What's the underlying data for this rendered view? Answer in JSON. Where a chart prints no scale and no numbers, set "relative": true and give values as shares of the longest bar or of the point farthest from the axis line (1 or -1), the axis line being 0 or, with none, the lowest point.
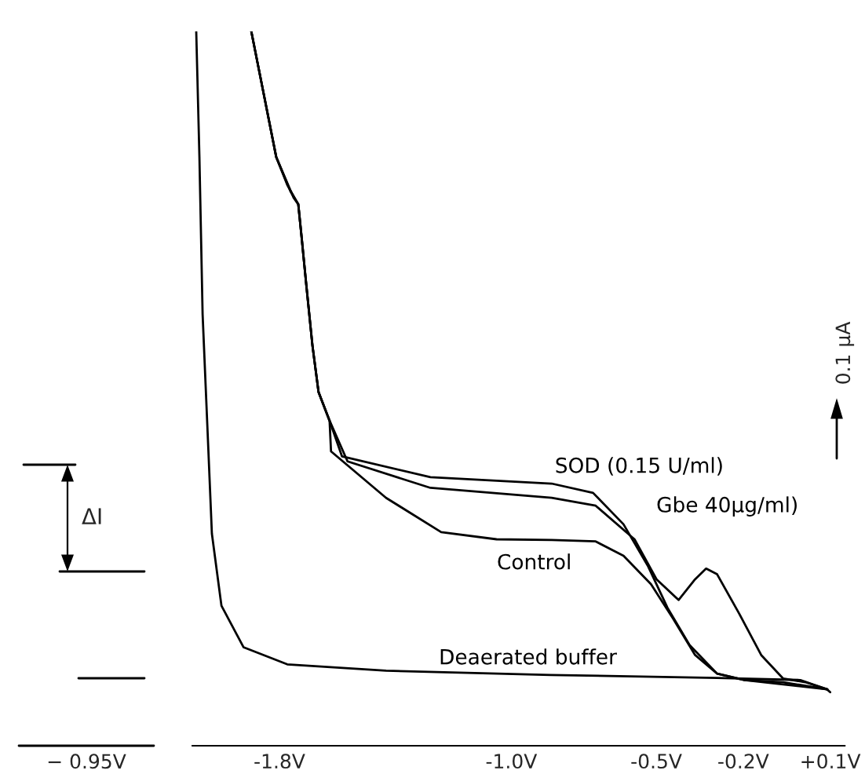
{
  "chart_data": {
    "type": "line",
    "relative": true,
    "xlim": [
      -2.1,
      0.15
    ],
    "xticks": [
      {
        "value": -1.8,
        "label": "-1.8V"
      },
      {
        "value": -1.0,
        "label": "-1.0V"
      },
      {
        "value": -0.5,
        "label": "-0.5V"
      },
      {
        "value": -0.2,
        "label": "-0.2V"
      },
      {
        "value": 0.1,
        "label": "+0.1V"
      }
    ],
    "series": [
      {
        "name": "SOD (0.15 U/ml)",
        "color": "#000000",
        "x": [
          -1.897,
          -1.854,
          -1.811,
          -1.751,
          -1.735,
          -1.724,
          -1.708,
          -1.686,
          -1.665,
          -1.627,
          -1.584,
          -1.279,
          -0.861,
          -0.718,
          -0.613,
          -0.528,
          -0.461,
          -0.385,
          -0.29,
          -0.195,
          -0.062,
          0.09
        ],
        "values": [
          1.0,
          0.912,
          0.824,
          0.767,
          0.758,
          0.714,
          0.648,
          0.56,
          0.495,
          0.455,
          0.405,
          0.376,
          0.367,
          0.354,
          0.31,
          0.251,
          0.193,
          0.141,
          0.101,
          0.092,
          0.089,
          0.079
        ]
      },
      {
        "name": "Gbe 40μg/ml)",
        "color": "#000000",
        "x": [
          -1.897,
          -1.854,
          -1.811,
          -1.762,
          -1.735,
          -1.724,
          -1.708,
          -1.686,
          -1.665,
          -1.627,
          -1.565,
          -1.279,
          -0.861,
          -0.709,
          -0.575,
          -0.499,
          -0.423,
          -0.366,
          -0.328,
          -0.29,
          -0.214,
          -0.138,
          -0.062,
          0.014,
          0.09
        ],
        "values": [
          1.0,
          0.912,
          0.824,
          0.776,
          0.758,
          0.714,
          0.648,
          0.56,
          0.495,
          0.455,
          0.398,
          0.361,
          0.347,
          0.336,
          0.289,
          0.233,
          0.204,
          0.233,
          0.248,
          0.24,
          0.185,
          0.127,
          0.094,
          0.089,
          0.079
        ]
      },
      {
        "name": "Control",
        "color": "#000000",
        "x": [
          -1.897,
          -1.854,
          -1.811,
          -1.773,
          -1.735,
          -1.724,
          -1.708,
          -1.686,
          -1.665,
          -1.627,
          -1.622,
          -1.432,
          -1.242,
          -1.051,
          -0.861,
          -0.709,
          -0.613,
          -0.518,
          -0.442,
          -0.366,
          -0.29,
          -0.195,
          0.09
        ],
        "values": [
          1.0,
          0.912,
          0.824,
          0.785,
          0.758,
          0.714,
          0.648,
          0.56,
          0.495,
          0.455,
          0.412,
          0.347,
          0.299,
          0.289,
          0.288,
          0.286,
          0.266,
          0.226,
          0.178,
          0.127,
          0.101,
          0.092,
          0.079
        ]
      },
      {
        "name": "Deaerated buffer",
        "color": "#000000",
        "x": [
          -2.087,
          -2.076,
          -2.065,
          -2.049,
          -2.033,
          -2.0,
          -1.924,
          -1.773,
          -1.432,
          -0.864,
          -0.29,
          -0.003,
          0.089,
          0.1
        ],
        "values": [
          1.0,
          0.824,
          0.604,
          0.451,
          0.297,
          0.196,
          0.138,
          0.114,
          0.105,
          0.099,
          0.095,
          0.092,
          0.079,
          0.075
        ]
      }
    ],
    "annotations": [
      "0.1 μA",
      "ΔI",
      "− 0.95V"
    ],
    "grid": false,
    "legend": false,
    "line_style": "solid",
    "marker": "none"
  }
}
